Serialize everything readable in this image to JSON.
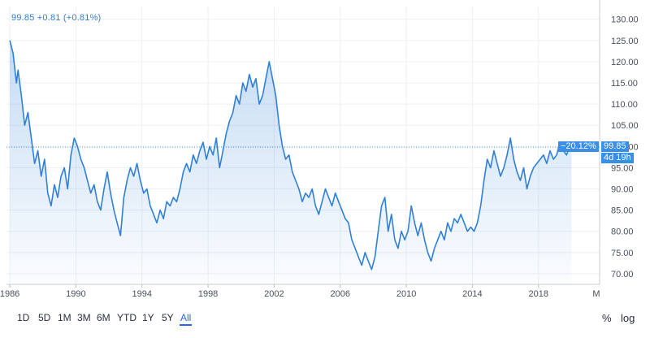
{
  "quote": "99.85 +0.81 (+0.81%)",
  "price_tag": "99.85",
  "change_tag": "−20.12%",
  "countdown_tag": "4d 19h",
  "ranges": [
    {
      "label": "1D",
      "active": false
    },
    {
      "label": "5D",
      "active": false
    },
    {
      "label": "1M",
      "active": false
    },
    {
      "label": "3M",
      "active": false
    },
    {
      "label": "6M",
      "active": false
    },
    {
      "label": "YTD",
      "active": false
    },
    {
      "label": "1Y",
      "active": false
    },
    {
      "label": "5Y",
      "active": false
    },
    {
      "label": "All",
      "active": true
    }
  ],
  "options": {
    "percent": "%",
    "log": "log"
  },
  "colors": {
    "line": "#2f80d8",
    "accent": "#2962ff",
    "grid": "#eef0f3",
    "tag": "#3a8ee6"
  },
  "chart_data": {
    "type": "area",
    "x_ticks": [
      "1986",
      "1990",
      "1994",
      "1998",
      "2002",
      "2006",
      "2010",
      "2014",
      "2018",
      "M"
    ],
    "y_ticks": [
      70,
      75,
      80,
      85,
      90,
      95,
      100,
      105,
      110,
      115,
      120,
      125,
      130
    ],
    "y_tick_labels": [
      "70.00",
      "75.00",
      "80.00",
      "85.00",
      "90.00",
      "95.00",
      "100.00",
      "105.00",
      "110.00",
      "115.00",
      "120.00",
      "125.00",
      "130.00"
    ],
    "ylim": [
      67.5,
      133
    ],
    "xlim": [
      1985.8,
      2021.7
    ],
    "last_price": 99.85,
    "series": [
      {
        "values": [
          [
            1986.0,
            125
          ],
          [
            1986.2,
            122
          ],
          [
            1986.4,
            115
          ],
          [
            1986.5,
            118
          ],
          [
            1986.7,
            112
          ],
          [
            1986.9,
            105
          ],
          [
            1987.1,
            108
          ],
          [
            1987.3,
            102
          ],
          [
            1987.5,
            96
          ],
          [
            1987.7,
            99
          ],
          [
            1987.9,
            93
          ],
          [
            1988.1,
            97
          ],
          [
            1988.3,
            89
          ],
          [
            1988.5,
            86
          ],
          [
            1988.7,
            91
          ],
          [
            1988.9,
            88
          ],
          [
            1989.1,
            93
          ],
          [
            1989.3,
            95
          ],
          [
            1989.5,
            90
          ],
          [
            1989.7,
            98
          ],
          [
            1989.9,
            102
          ],
          [
            1990.1,
            100
          ],
          [
            1990.3,
            97
          ],
          [
            1990.5,
            95
          ],
          [
            1990.7,
            92
          ],
          [
            1990.9,
            89
          ],
          [
            1991.1,
            91
          ],
          [
            1991.3,
            87
          ],
          [
            1991.5,
            85
          ],
          [
            1991.7,
            90
          ],
          [
            1991.9,
            94
          ],
          [
            1992.1,
            89
          ],
          [
            1992.3,
            85
          ],
          [
            1992.5,
            82
          ],
          [
            1992.7,
            79
          ],
          [
            1992.9,
            88
          ],
          [
            1993.1,
            92
          ],
          [
            1993.3,
            95
          ],
          [
            1993.5,
            93
          ],
          [
            1993.7,
            96
          ],
          [
            1993.9,
            92
          ],
          [
            1994.1,
            89
          ],
          [
            1994.3,
            90
          ],
          [
            1994.5,
            86
          ],
          [
            1994.7,
            84
          ],
          [
            1994.9,
            82
          ],
          [
            1995.1,
            85
          ],
          [
            1995.3,
            83
          ],
          [
            1995.5,
            87
          ],
          [
            1995.7,
            86
          ],
          [
            1995.9,
            88
          ],
          [
            1996.1,
            87
          ],
          [
            1996.3,
            90
          ],
          [
            1996.5,
            94
          ],
          [
            1996.7,
            96
          ],
          [
            1996.9,
            94
          ],
          [
            1997.1,
            98
          ],
          [
            1997.3,
            96
          ],
          [
            1997.5,
            99
          ],
          [
            1997.7,
            101
          ],
          [
            1997.9,
            97
          ],
          [
            1998.1,
            100
          ],
          [
            1998.3,
            98
          ],
          [
            1998.5,
            102
          ],
          [
            1998.7,
            95
          ],
          [
            1998.9,
            99
          ],
          [
            1999.1,
            103
          ],
          [
            1999.3,
            106
          ],
          [
            1999.5,
            108
          ],
          [
            1999.7,
            112
          ],
          [
            1999.9,
            110
          ],
          [
            2000.1,
            115
          ],
          [
            2000.3,
            113
          ],
          [
            2000.5,
            117
          ],
          [
            2000.7,
            114
          ],
          [
            2000.9,
            116
          ],
          [
            2001.1,
            110
          ],
          [
            2001.3,
            112
          ],
          [
            2001.5,
            116
          ],
          [
            2001.7,
            120
          ],
          [
            2001.9,
            116
          ],
          [
            2002.1,
            112
          ],
          [
            2002.3,
            105
          ],
          [
            2002.5,
            100
          ],
          [
            2002.7,
            97
          ],
          [
            2002.9,
            98
          ],
          [
            2003.1,
            94
          ],
          [
            2003.3,
            92
          ],
          [
            2003.5,
            90
          ],
          [
            2003.7,
            87
          ],
          [
            2003.9,
            89
          ],
          [
            2004.1,
            88
          ],
          [
            2004.3,
            90
          ],
          [
            2004.5,
            86
          ],
          [
            2004.7,
            84
          ],
          [
            2004.9,
            87
          ],
          [
            2005.1,
            90
          ],
          [
            2005.3,
            88
          ],
          [
            2005.5,
            86
          ],
          [
            2005.7,
            89
          ],
          [
            2005.9,
            87
          ],
          [
            2006.1,
            85
          ],
          [
            2006.3,
            83
          ],
          [
            2006.5,
            82
          ],
          [
            2006.7,
            78
          ],
          [
            2006.9,
            76
          ],
          [
            2007.1,
            74
          ],
          [
            2007.3,
            72
          ],
          [
            2007.5,
            75
          ],
          [
            2007.7,
            73
          ],
          [
            2007.9,
            71
          ],
          [
            2008.1,
            74
          ],
          [
            2008.3,
            80
          ],
          [
            2008.5,
            86
          ],
          [
            2008.7,
            88
          ],
          [
            2008.9,
            80
          ],
          [
            2009.1,
            84
          ],
          [
            2009.3,
            78
          ],
          [
            2009.5,
            76
          ],
          [
            2009.7,
            80
          ],
          [
            2009.9,
            78
          ],
          [
            2010.1,
            80
          ],
          [
            2010.3,
            86
          ],
          [
            2010.5,
            82
          ],
          [
            2010.7,
            79
          ],
          [
            2010.9,
            82
          ],
          [
            2011.1,
            78
          ],
          [
            2011.3,
            75
          ],
          [
            2011.5,
            73
          ],
          [
            2011.7,
            76
          ],
          [
            2011.9,
            78
          ],
          [
            2012.1,
            80
          ],
          [
            2012.3,
            78
          ],
          [
            2012.5,
            82
          ],
          [
            2012.7,
            80
          ],
          [
            2012.9,
            83
          ],
          [
            2013.1,
            82
          ],
          [
            2013.3,
            84
          ],
          [
            2013.5,
            82
          ],
          [
            2013.7,
            80
          ],
          [
            2013.9,
            81
          ],
          [
            2014.1,
            80
          ],
          [
            2014.3,
            82
          ],
          [
            2014.5,
            86
          ],
          [
            2014.7,
            92
          ],
          [
            2014.9,
            97
          ],
          [
            2015.1,
            95
          ],
          [
            2015.3,
            99
          ],
          [
            2015.5,
            96
          ],
          [
            2015.7,
            93
          ],
          [
            2015.9,
            95
          ],
          [
            2016.1,
            98
          ],
          [
            2016.3,
            102
          ],
          [
            2016.5,
            97
          ],
          [
            2016.7,
            94
          ],
          [
            2016.9,
            92
          ],
          [
            2017.1,
            95
          ],
          [
            2017.3,
            90
          ],
          [
            2017.5,
            93
          ],
          [
            2017.7,
            95
          ],
          [
            2017.9,
            96
          ],
          [
            2018.1,
            97
          ],
          [
            2018.3,
            98
          ],
          [
            2018.5,
            96
          ],
          [
            2018.7,
            99
          ],
          [
            2018.9,
            97
          ],
          [
            2019.1,
            98
          ],
          [
            2019.3,
            101
          ],
          [
            2019.5,
            99
          ],
          [
            2019.7,
            98
          ],
          [
            2019.9,
            100
          ],
          [
            2020.0,
            99.85
          ]
        ]
      }
    ]
  }
}
